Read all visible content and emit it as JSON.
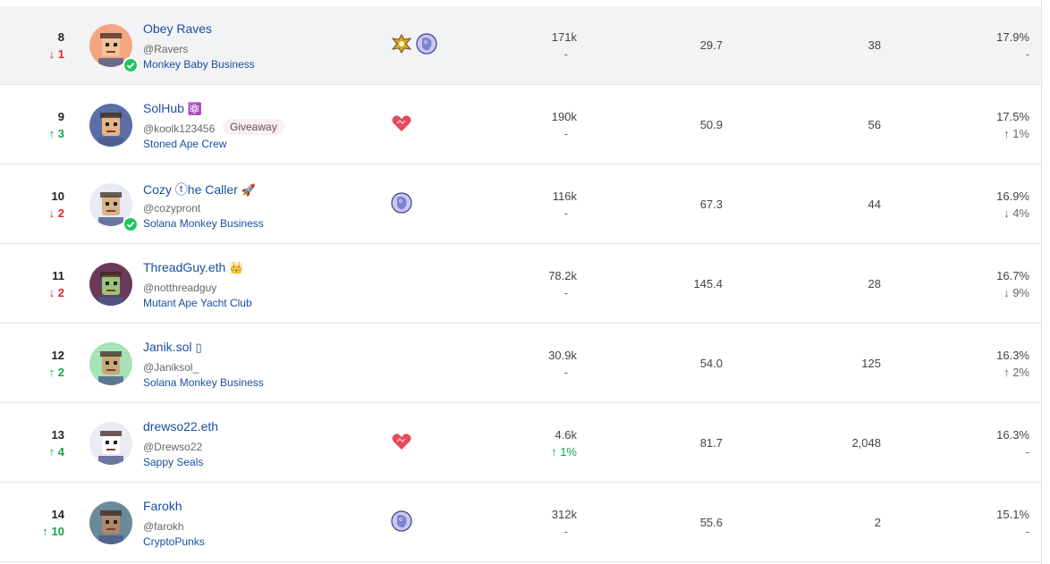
{
  "rows": [
    {
      "rank": "8",
      "move": "↓ 1",
      "dir": "down",
      "name": "Obey Raves",
      "emoji": "",
      "handle": "@Ravers",
      "badge": "",
      "collection": "Monkey Baby Business",
      "verified": true,
      "icons": [
        "golden-wings-icon",
        "blue-creature-icon"
      ],
      "followers": "171k",
      "followers_change": "-",
      "followers_dir": "none",
      "metric": "29.7",
      "count": "38",
      "pct": "17.9%",
      "pct_change": "-",
      "pct_dir": "none",
      "highlight": true,
      "avatar_color": "#f4a582"
    },
    {
      "rank": "9",
      "move": "↑ 3",
      "dir": "up",
      "name": "SolHub",
      "emoji": "⚛️",
      "handle": "@koolk123456",
      "badge": "Giveaway",
      "collection": "Stoned Ape Crew",
      "verified": false,
      "icons": [
        "handshake-heart-icon"
      ],
      "followers": "190k",
      "followers_change": "-",
      "followers_dir": "none",
      "metric": "50.9",
      "count": "56",
      "pct": "17.5%",
      "pct_change": "↑ 1%",
      "pct_dir": "up",
      "highlight": false,
      "avatar_color": "#5b6ea8"
    },
    {
      "rank": "10",
      "move": "↓ 2",
      "dir": "down",
      "name": "Cozy ⓣhe Caller",
      "emoji": "🚀",
      "handle": "@cozypront",
      "badge": "",
      "collection": "Solana Monkey Business",
      "verified": true,
      "icons": [
        "blue-creature-icon"
      ],
      "followers": "116k",
      "followers_change": "-",
      "followers_dir": "none",
      "metric": "67.3",
      "count": "44",
      "pct": "16.9%",
      "pct_change": "↓ 4%",
      "pct_dir": "down",
      "highlight": false,
      "avatar_color": "#e8eaf6"
    },
    {
      "rank": "11",
      "move": "↓ 2",
      "dir": "down",
      "name": "ThreadGuy.eth",
      "emoji": "👑",
      "handle": "@notthreadguy",
      "badge": "",
      "collection": "Mutant Ape Yacht Club",
      "verified": false,
      "icons": [],
      "followers": "78.2k",
      "followers_change": "-",
      "followers_dir": "none",
      "metric": "145.4",
      "count": "28",
      "pct": "16.7%",
      "pct_change": "↓ 9%",
      "pct_dir": "down",
      "highlight": false,
      "avatar_color": "#6b3a5a"
    },
    {
      "rank": "12",
      "move": "↑ 2",
      "dir": "up",
      "name": "Janik.sol",
      "emoji": "▯",
      "handle": "@Janiksol_",
      "badge": "",
      "collection": "Solana Monkey Business",
      "verified": false,
      "icons": [],
      "followers": "30.9k",
      "followers_change": "-",
      "followers_dir": "none",
      "metric": "54.0",
      "count": "125",
      "pct": "16.3%",
      "pct_change": "↑ 2%",
      "pct_dir": "up",
      "highlight": false,
      "avatar_color": "#a7e3b8"
    },
    {
      "rank": "13",
      "move": "↑ 4",
      "dir": "up",
      "name": "drewso22.eth",
      "emoji": "",
      "handle": "@Drewso22",
      "badge": "",
      "collection": "Sappy Seals",
      "verified": false,
      "icons": [
        "handshake-heart-icon"
      ],
      "followers": "4.6k",
      "followers_change": "↑ 1%",
      "followers_dir": "up",
      "metric": "81.7",
      "count": "2,048",
      "pct": "16.3%",
      "pct_change": "-",
      "pct_dir": "none",
      "highlight": false,
      "avatar_color": "#eceaf2"
    },
    {
      "rank": "14",
      "move": "↑ 10",
      "dir": "up",
      "name": "Farokh",
      "emoji": "",
      "handle": "@farokh",
      "badge": "",
      "collection": "CryptoPunks",
      "verified": false,
      "icons": [
        "blue-creature-icon"
      ],
      "followers": "312k",
      "followers_change": "-",
      "followers_dir": "none",
      "metric": "55.6",
      "count": "2",
      "pct": "15.1%",
      "pct_change": "-",
      "pct_dir": "none",
      "highlight": false,
      "avatar_color": "#6b8a99"
    }
  ]
}
